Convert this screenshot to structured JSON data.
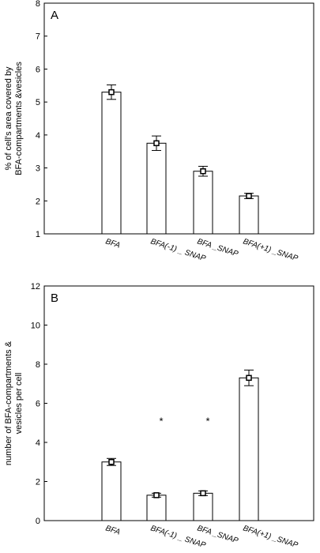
{
  "chart_data": [
    {
      "type": "bar",
      "panel_label": "A",
      "categories": [
        "BFA",
        "BFA(-1) _ SNAP",
        "BFA _SNAP",
        "BFA(+1) _SNAP"
      ],
      "values": [
        5.3,
        3.75,
        2.9,
        2.15
      ],
      "errors": [
        0.22,
        0.22,
        0.15,
        0.08
      ],
      "ylabel_lines": [
        "% of cell's area covered by",
        "BFA-compartments &vesicles"
      ],
      "ylim": [
        1,
        8
      ],
      "yticks": [
        "1",
        "2",
        "3",
        "4",
        "5",
        "6",
        "7",
        "8"
      ],
      "annotations": [
        "",
        "",
        "",
        ""
      ]
    },
    {
      "type": "bar",
      "panel_label": "B",
      "categories": [
        "BFA",
        "BFA(-1) _ SNAP",
        "BFA _SNAP",
        "BFA(+1) _SNAP"
      ],
      "values": [
        3.0,
        1.3,
        1.4,
        7.3
      ],
      "errors": [
        0.18,
        0.1,
        0.12,
        0.4
      ],
      "ylabel_lines": [
        "number of BFA-compartments &",
        "vesicles per cell"
      ],
      "ylim": [
        0,
        12
      ],
      "yticks": [
        "0",
        "2",
        "4",
        "6",
        "8",
        "10",
        "12"
      ],
      "annotations": [
        "",
        "*",
        "*",
        ""
      ]
    }
  ]
}
